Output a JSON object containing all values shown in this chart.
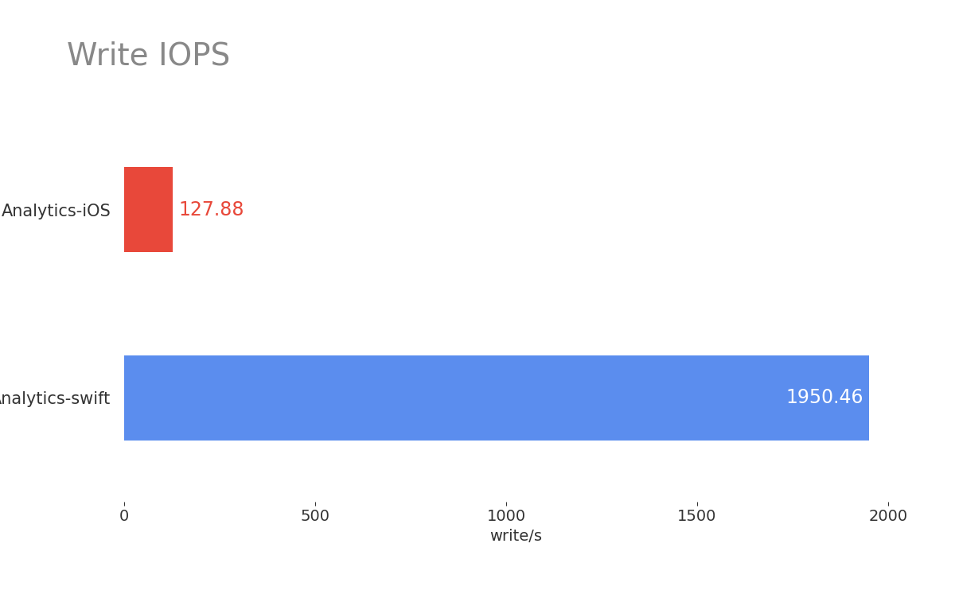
{
  "title": "Write IOPS",
  "title_color": "#888888",
  "title_fontsize": 28,
  "categories": [
    "Analytics-iOS",
    "Analytics-swift"
  ],
  "values": [
    127.88,
    1950.46
  ],
  "bar_colors": [
    "#e8483a",
    "#5b8dee"
  ],
  "value_labels": [
    "127.88",
    "1950.46"
  ],
  "value_label_colors": [
    "#e8483a",
    "#ffffff"
  ],
  "xlabel": "write/s",
  "xlabel_fontsize": 14,
  "xlim": [
    0,
    2050
  ],
  "xticks": [
    0,
    500,
    1000,
    1500,
    2000
  ],
  "bar_height": 0.45,
  "figsize": [
    12.0,
    7.42
  ],
  "dpi": 100,
  "background_color": "#ffffff",
  "tick_label_fontsize": 14,
  "value_fontsize": 17,
  "ylabel_label_fontsize": 15
}
